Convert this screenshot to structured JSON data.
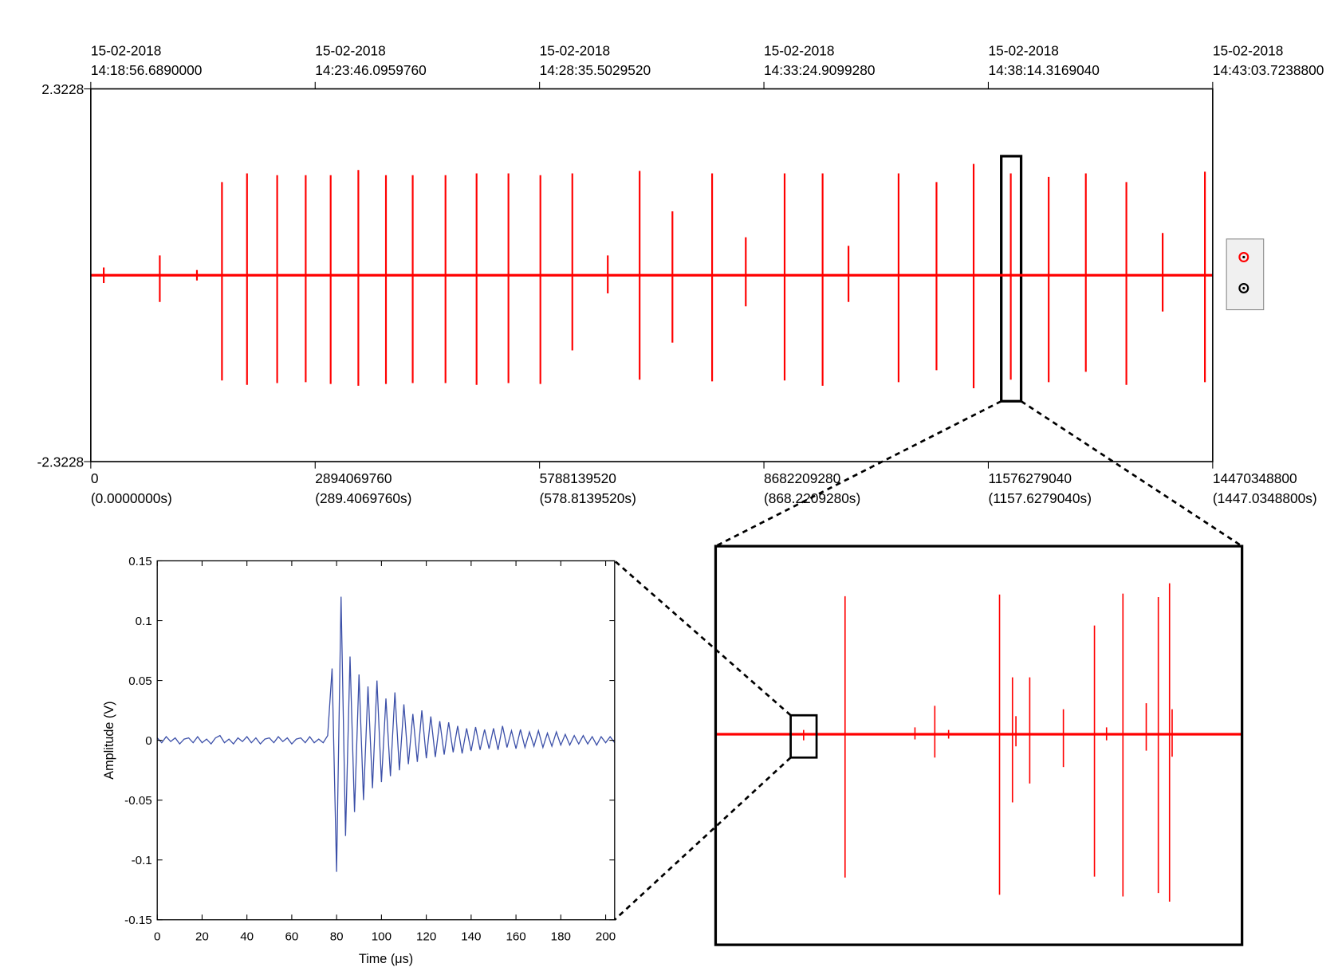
{
  "chart_data": [
    {
      "type": "spike",
      "x": [
        167000000,
        890000000,
        1369000000,
        1692000000,
        2015000000,
        2404000000,
        2772000000,
        3094000000,
        3451000000,
        3807000000,
        4152000000,
        4575000000,
        4976000000,
        5387000000,
        5799000000,
        6211000000,
        6668000000,
        7079000000,
        7502000000,
        8014000000,
        8448000000,
        8949000000,
        9439000000,
        9773000000,
        10419000000,
        10908000000,
        11387000000,
        11866000000,
        12355000000,
        12834000000,
        13357000000,
        13825000000,
        14370000000
      ],
      "high": [
        0.097,
        0.247,
        0.065,
        1.161,
        1.269,
        1.247,
        1.247,
        1.247,
        1.312,
        1.247,
        1.247,
        1.247,
        1.269,
        1.269,
        1.247,
        1.269,
        0.247,
        1.301,
        0.796,
        1.269,
        0.473,
        1.269,
        1.269,
        0.366,
        1.269,
        1.161,
        1.387,
        1.269,
        1.226,
        1.269,
        1.161,
        0.527,
        1.29
      ],
      "low": [
        -0.097,
        -0.333,
        -0.065,
        -1.312,
        -1.366,
        -1.344,
        -1.333,
        -1.355,
        -1.377,
        -1.355,
        -1.344,
        -1.344,
        -1.366,
        -1.344,
        -1.355,
        -0.936,
        -0.226,
        -1.301,
        -0.839,
        -1.323,
        -0.387,
        -1.312,
        -1.377,
        -0.333,
        -1.333,
        -1.183,
        -1.409,
        -1.301,
        -1.333,
        -1.204,
        -1.366,
        -0.452,
        -1.333
      ],
      "color": "#ff0000",
      "xlim": [
        0,
        14470348800
      ],
      "xticks": [
        0,
        2894069760,
        5788139520,
        8682209280,
        11576279040,
        14470348800
      ],
      "xtick_seconds": [
        "(0.0000000s)",
        "(289.4069760s)",
        "(578.8139520s)",
        "(868.2209280s)",
        "(1157.6279040s)",
        "(1447.0348800s)"
      ],
      "top_xtick_labels": [
        {
          "date": "15-02-2018",
          "time": "14:18:56.6890000"
        },
        {
          "date": "15-02-2018",
          "time": "14:23:46.0959760"
        },
        {
          "date": "15-02-2018",
          "time": "14:28:35.5029520"
        },
        {
          "date": "15-02-2018",
          "time": "14:33:24.9099280"
        },
        {
          "date": "15-02-2018",
          "time": "14:38:14.3169040"
        },
        {
          "date": "15-02-2018",
          "time": "14:43:03.7238800"
        }
      ],
      "ylim": [
        -2.3228,
        2.3228
      ],
      "yticks": [
        2.3228,
        -2.3228
      ]
    },
    {
      "type": "line",
      "x_label": "Time (μs)",
      "y_label": "Amplitude (V)",
      "color": "#3b4fa8",
      "x": [
        0,
        2,
        4,
        6,
        8,
        10,
        12,
        14,
        16,
        18,
        20,
        22,
        24,
        26,
        28,
        30,
        32,
        34,
        36,
        38,
        40,
        42,
        44,
        46,
        48,
        50,
        52,
        54,
        56,
        58,
        60,
        62,
        64,
        66,
        68,
        70,
        72,
        74,
        76,
        78,
        80,
        82,
        84,
        86,
        88,
        90,
        92,
        94,
        96,
        98,
        100,
        102,
        104,
        106,
        108,
        110,
        112,
        114,
        116,
        118,
        120,
        122,
        124,
        126,
        128,
        130,
        132,
        134,
        136,
        138,
        140,
        142,
        144,
        146,
        148,
        150,
        152,
        154,
        156,
        158,
        160,
        162,
        164,
        166,
        168,
        170,
        172,
        174,
        176,
        178,
        180,
        182,
        184,
        186,
        188,
        190,
        192,
        194,
        196,
        198,
        200,
        202,
        204
      ],
      "values": [
        0.002,
        -0.002,
        0.003,
        -0.001,
        0.002,
        -0.003,
        0.001,
        0.002,
        -0.002,
        0.003,
        -0.002,
        0.001,
        -0.003,
        0.002,
        0.004,
        -0.002,
        0.001,
        -0.003,
        0.002,
        -0.001,
        0.003,
        -0.002,
        0.002,
        -0.003,
        0.001,
        0.002,
        -0.002,
        0.003,
        -0.001,
        0.002,
        -0.003,
        0.001,
        0.002,
        -0.002,
        0.003,
        -0.002,
        0.001,
        -0.002,
        0.004,
        0.06,
        -0.11,
        0.12,
        -0.08,
        0.07,
        -0.06,
        0.055,
        -0.05,
        0.045,
        -0.04,
        0.05,
        -0.035,
        0.035,
        -0.03,
        0.04,
        -0.025,
        0.03,
        -0.02,
        0.022,
        -0.018,
        0.025,
        -0.015,
        0.02,
        -0.014,
        0.016,
        -0.012,
        0.015,
        -0.01,
        0.012,
        -0.011,
        0.01,
        -0.009,
        0.011,
        -0.008,
        0.009,
        -0.007,
        0.01,
        -0.008,
        0.012,
        -0.006,
        0.008,
        -0.007,
        0.009,
        -0.006,
        0.007,
        -0.005,
        0.008,
        -0.006,
        0.006,
        -0.005,
        0.007,
        -0.004,
        0.005,
        -0.004,
        0.004,
        -0.003,
        0.004,
        -0.003,
        0.003,
        -0.004,
        0.003,
        -0.002,
        0.003,
        -0.002
      ],
      "xlim": [
        0,
        204
      ],
      "xticks": [
        0,
        20,
        40,
        60,
        80,
        100,
        120,
        140,
        160,
        180,
        200
      ],
      "ylim": [
        -0.15,
        0.15
      ],
      "yticks": [
        -0.15,
        -0.1,
        -0.05,
        0,
        0.05,
        0.1,
        0.15
      ],
      "grid": false
    }
  ]
}
